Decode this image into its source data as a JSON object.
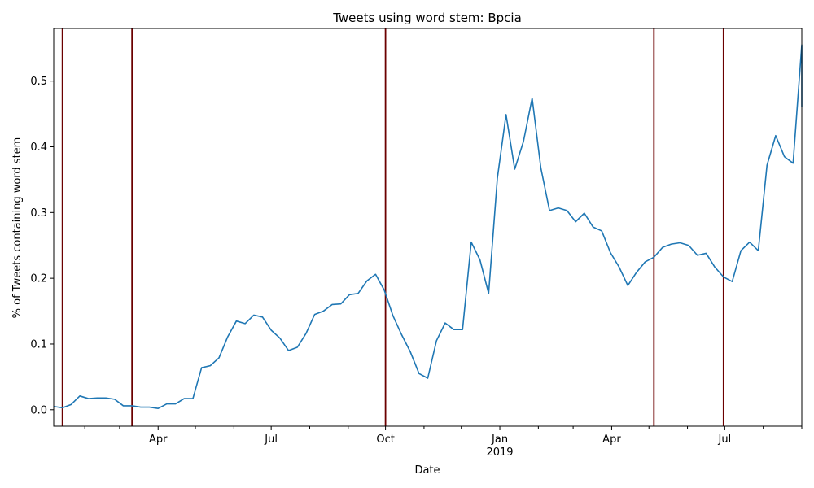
{
  "chart_data": {
    "type": "line",
    "title": "Tweets using word stem: Bpcia",
    "xlabel": "Date",
    "ylabel": "% of Tweets containing word stem",
    "xlim": [
      "2018-01-07",
      "2019-09-01"
    ],
    "ylim": [
      -0.025,
      0.58
    ],
    "grid": false,
    "colors": {
      "series": "#1f77b4",
      "event_lines": "#6b0000"
    },
    "y_ticks": [
      {
        "value": 0.0,
        "label": "0.0"
      },
      {
        "value": 0.1,
        "label": "0.1"
      },
      {
        "value": 0.2,
        "label": "0.2"
      },
      {
        "value": 0.3,
        "label": "0.3"
      },
      {
        "value": 0.4,
        "label": "0.4"
      },
      {
        "value": 0.5,
        "label": "0.5"
      }
    ],
    "x_major_ticks": [
      {
        "date": "2018-04-01",
        "label": "Apr",
        "sublabel": ""
      },
      {
        "date": "2018-07-01",
        "label": "Jul",
        "sublabel": ""
      },
      {
        "date": "2018-10-01",
        "label": "Oct",
        "sublabel": ""
      },
      {
        "date": "2019-01-01",
        "label": "Jan",
        "sublabel": "2019"
      },
      {
        "date": "2019-04-01",
        "label": "Apr",
        "sublabel": ""
      },
      {
        "date": "2019-07-01",
        "label": "Jul",
        "sublabel": ""
      }
    ],
    "x_minor_ticks": [
      "2018-02-01",
      "2018-03-01",
      "2018-05-01",
      "2018-06-01",
      "2018-08-01",
      "2018-09-01",
      "2018-11-01",
      "2018-12-01",
      "2019-02-01",
      "2019-03-01",
      "2019-05-01",
      "2019-06-01",
      "2019-08-01",
      "2019-09-01"
    ],
    "vertical_lines": [
      "2018-01-14",
      "2018-03-11",
      "2018-10-01",
      "2019-05-05",
      "2019-06-30"
    ],
    "series": [
      {
        "x": [
          "2018-01-07",
          "2018-01-14",
          "2018-01-21",
          "2018-01-28",
          "2018-02-04",
          "2018-02-11",
          "2018-02-18",
          "2018-02-25",
          "2018-03-04",
          "2018-03-11",
          "2018-03-18",
          "2018-03-25",
          "2018-04-01",
          "2018-04-08",
          "2018-04-15",
          "2018-04-22",
          "2018-04-29",
          "2018-05-06",
          "2018-05-13",
          "2018-05-20",
          "2018-05-27",
          "2018-06-03",
          "2018-06-10",
          "2018-06-17",
          "2018-06-24",
          "2018-07-01",
          "2018-07-08",
          "2018-07-15",
          "2018-07-22",
          "2018-07-29",
          "2018-08-05",
          "2018-08-12",
          "2018-08-19",
          "2018-08-26",
          "2018-09-02",
          "2018-09-09",
          "2018-09-16",
          "2018-09-23",
          "2018-09-30",
          "2018-10-07",
          "2018-10-14",
          "2018-10-21",
          "2018-10-28",
          "2018-11-04",
          "2018-11-11",
          "2018-11-18",
          "2018-11-25",
          "2018-12-02",
          "2018-12-09",
          "2018-12-16",
          "2018-12-23",
          "2018-12-30",
          "2019-01-06",
          "2019-01-13",
          "2019-01-20",
          "2019-01-27",
          "2019-02-03",
          "2019-02-10",
          "2019-02-17",
          "2019-02-24",
          "2019-03-03",
          "2019-03-10",
          "2019-03-17",
          "2019-03-24",
          "2019-03-31",
          "2019-04-07",
          "2019-04-14",
          "2019-04-21",
          "2019-04-28",
          "2019-05-05",
          "2019-05-12",
          "2019-05-19",
          "2019-05-26",
          "2019-06-02",
          "2019-06-09",
          "2019-06-16",
          "2019-06-23",
          "2019-06-30",
          "2019-07-07",
          "2019-07-14",
          "2019-07-21",
          "2019-07-28",
          "2019-08-04",
          "2019-08-11",
          "2019-08-18",
          "2019-08-25",
          "2019-09-01",
          "2019-09-08",
          "2019-09-15"
        ],
        "values": [
          0.005,
          0.003,
          0.008,
          0.021,
          0.017,
          0.018,
          0.018,
          0.016,
          0.006,
          0.006,
          0.004,
          0.004,
          0.002,
          0.009,
          0.009,
          0.017,
          0.017,
          0.064,
          0.067,
          0.079,
          0.111,
          0.135,
          0.131,
          0.144,
          0.141,
          0.121,
          0.109,
          0.09,
          0.095,
          0.116,
          0.145,
          0.15,
          0.16,
          0.161,
          0.175,
          0.177,
          0.196,
          0.206,
          0.182,
          0.143,
          0.114,
          0.088,
          0.055,
          0.048,
          0.105,
          0.132,
          0.122,
          0.122,
          0.255,
          0.228,
          0.177,
          0.352,
          0.449,
          0.366,
          0.408,
          0.474,
          0.368,
          0.303,
          0.307,
          0.303,
          0.286,
          0.299,
          0.278,
          0.272,
          0.239,
          0.217,
          0.189,
          0.209,
          0.225,
          0.232,
          0.247,
          0.252,
          0.254,
          0.25,
          0.235,
          0.238,
          0.217,
          0.202,
          0.195,
          0.242,
          0.255,
          0.242,
          0.372,
          0.417,
          0.385,
          0.375,
          0.555,
          0.461,
          0.496
        ]
      }
    ]
  }
}
